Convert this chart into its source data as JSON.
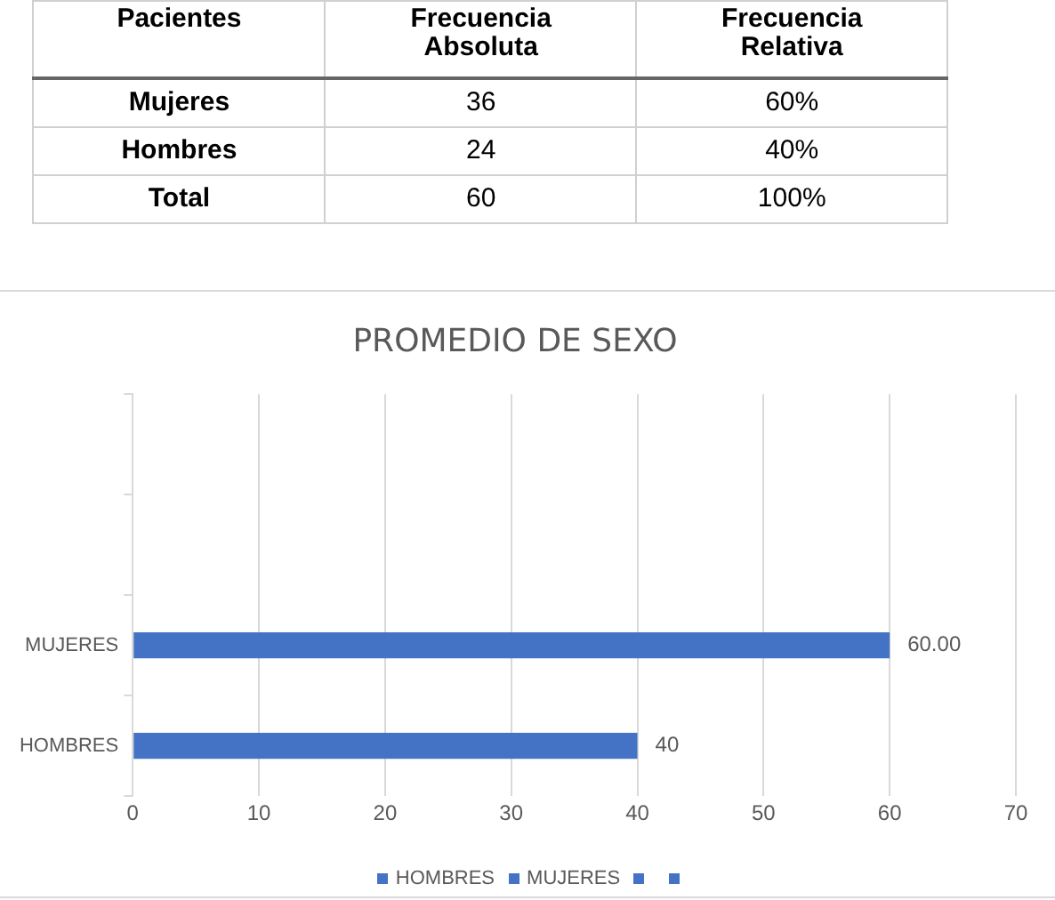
{
  "chart_data": [
    {
      "type": "other",
      "categories": [
        "Pacientes",
        "Frecuencia Absoluta",
        "Frecuencia Relativa"
      ],
      "cell_labels": [
        [
          "Mujeres",
          "36",
          "60%"
        ],
        [
          "Hombres",
          "24",
          "40%"
        ],
        [
          "Total",
          "60",
          "100%"
        ]
      ]
    },
    {
      "type": "bar",
      "title": "PROMEDIO DE SEXO",
      "orientation": "horizontal",
      "categories": [
        null,
        null,
        "MUJERES",
        "HOMBRES"
      ],
      "stacked": true,
      "series": [
        {
          "name": "HOMBRES",
          "color": "#4472c4",
          "values": [
            null,
            null,
            null,
            40
          ],
          "value_labels": [
            null,
            null,
            null,
            "40"
          ]
        },
        {
          "name": "MUJERES",
          "color": "#4472c4",
          "values": [
            null,
            null,
            60,
            null
          ],
          "value_labels": [
            null,
            null,
            "60.00",
            null
          ]
        }
      ],
      "xlim": [
        0,
        70
      ],
      "xticks": [
        0,
        10,
        20,
        30,
        40,
        50,
        60,
        70
      ],
      "grid": "x",
      "legend": "bottom"
    }
  ]
}
